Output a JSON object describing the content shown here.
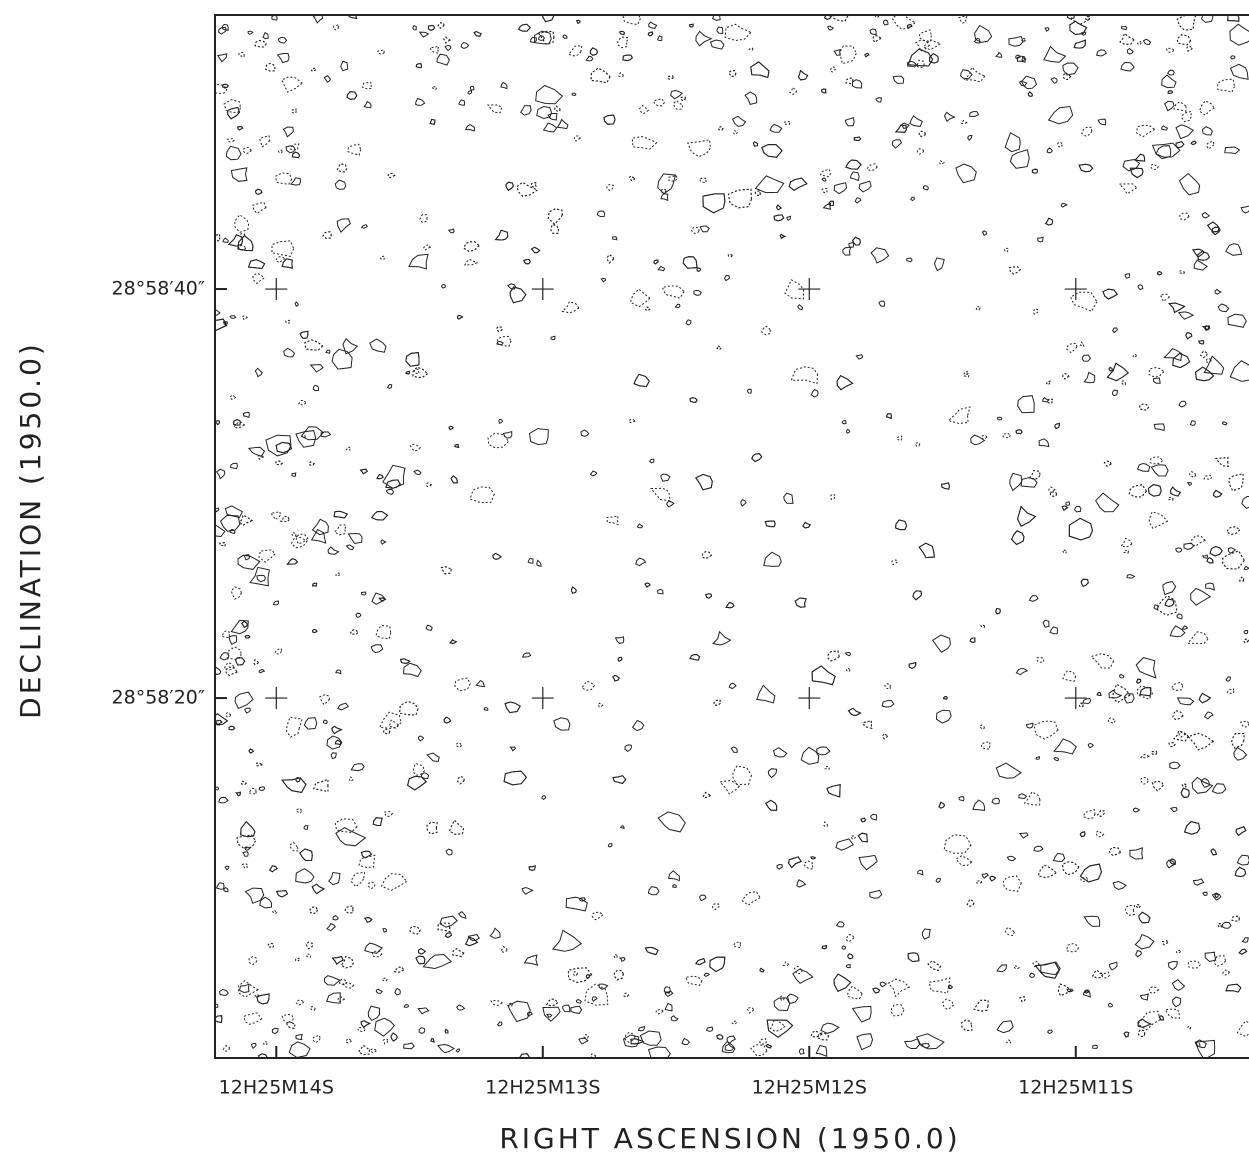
{
  "chart_data": {
    "type": "contour",
    "x_label": "RIGHT ASCENSION (1950.0)",
    "y_label": "DECLINATION (1950.0)",
    "xlim": [
      14.23,
      10.35
    ],
    "xticks": [
      {
        "value": 14,
        "label": "12H25M14S"
      },
      {
        "value": 13,
        "label": "12H25M13S"
      },
      {
        "value": 12,
        "label": "12H25M12S"
      },
      {
        "value": 11,
        "label": "12H25M11S"
      }
    ],
    "ylim": [
      2.4,
      53.4
    ],
    "yticks": [
      {
        "value": 40,
        "label": "28°58′40″"
      },
      {
        "value": 20,
        "label": "28°58′20″"
      }
    ],
    "grid": "crosses",
    "color": "#222222"
  }
}
